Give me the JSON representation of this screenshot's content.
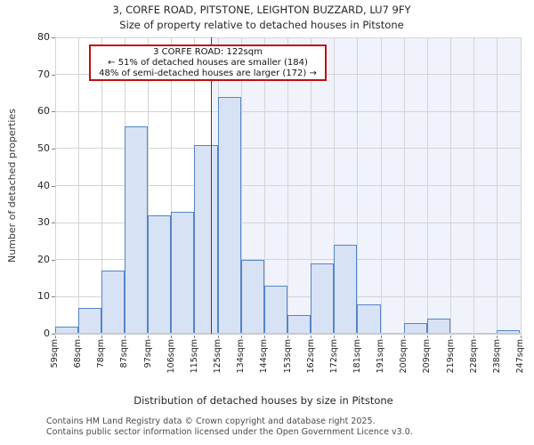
{
  "chart_data": {
    "type": "bar",
    "subtype": "histogram",
    "title": "3, CORFE ROAD, PITSTONE, LEIGHTON BUZZARD, LU7 9FY",
    "subtitle": "Size of property relative to detached houses in Pitstone",
    "xlabel": "Distribution of detached houses by size in Pitstone",
    "ylabel": "Number of detached properties",
    "bin_labels": [
      "59sqm",
      "68sqm",
      "78sqm",
      "87sqm",
      "97sqm",
      "106sqm",
      "115sqm",
      "125sqm",
      "134sqm",
      "144sqm",
      "153sqm",
      "162sqm",
      "172sqm",
      "181sqm",
      "191sqm",
      "200sqm",
      "209sqm",
      "219sqm",
      "228sqm",
      "238sqm",
      "247sqm"
    ],
    "bin_edges_sqm": [
      59,
      68,
      78,
      87,
      97,
      106,
      115,
      125,
      134,
      144,
      153,
      162,
      172,
      181,
      191,
      200,
      209,
      219,
      228,
      238,
      247
    ],
    "values": [
      2,
      7,
      17,
      56,
      32,
      33,
      51,
      64,
      20,
      13,
      5,
      19,
      24,
      8,
      0,
      3,
      4,
      0,
      0,
      1
    ],
    "ylim": [
      0,
      80
    ],
    "yticks": [
      0,
      10,
      20,
      30,
      40,
      50,
      60,
      70,
      80
    ],
    "x_range_sqm": [
      59,
      247
    ],
    "grid": true,
    "legend": false,
    "marker": {
      "value_sqm": 122,
      "label": "3 CORFE ROAD"
    },
    "annotation_lines": [
      "3 CORFE ROAD: 122sqm",
      "← 51% of detached houses are smaller (184)",
      "48% of semi-detached houses are larger (172) →"
    ],
    "colors": {
      "bar_fill": "#d7e2f4",
      "bar_edge": "#5585c7",
      "marker_line": "#a81414",
      "annotation_border": "#bf0f0f",
      "grid": "#d4d4d4",
      "highlight_region": "#f0f3fb",
      "axis_line": "#c6cbd4",
      "tick": "#808080"
    }
  },
  "footer": {
    "line1": "Contains HM Land Registry data © Crown copyright and database right 2025.",
    "line2": "Contains public sector information licensed under the Open Government Licence v3.0."
  }
}
